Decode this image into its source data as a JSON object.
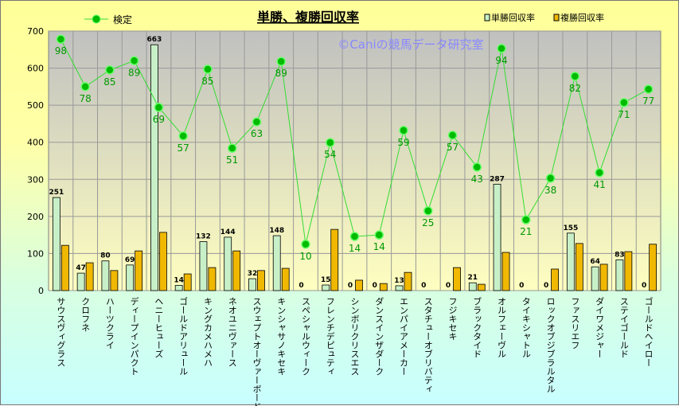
{
  "chart_data": {
    "type": "bar+line",
    "title": "単勝、複勝回収率",
    "watermark": "©Caniの競馬データ研究室",
    "xlabel": "",
    "ylabel": "",
    "ylim": [
      0,
      700
    ],
    "yticks": [
      0,
      100,
      200,
      300,
      400,
      500,
      600,
      700
    ],
    "grid": true,
    "legend_placement": "top",
    "categories": [
      "サウスヴィグラス",
      "クロフネ",
      "ハーツクライ",
      "ディープインパクト",
      "ヘニーヒューズ",
      "ゴールドアリュール",
      "キングカメハメハ",
      "ネオユニヴァース",
      "スウェプトオーヴァーボード",
      "キンシャサノキセキ",
      "スペシャルウィーク",
      "フレンチデピュティ",
      "シンボリクリスエス",
      "ダンスインザダーク",
      "エンパイアメーカー",
      "スタチューオブリバティ",
      "フジキセキ",
      "ブラックタイド",
      "オルフェーヴル",
      "タイキシャトル",
      "ロックオブジブラルタル",
      "ファスリエフ",
      "ダイワメジャー",
      "ステイゴールド",
      "ゴールドヘイロー"
    ],
    "series": [
      {
        "name": "単勝回収率",
        "kind": "bar",
        "color": "#c8f0c8",
        "values": [
          251,
          47,
          80,
          69,
          663,
          14,
          132,
          144,
          32,
          148,
          0,
          15,
          0,
          0,
          13,
          0,
          0,
          21,
          287,
          0,
          0,
          155,
          64,
          83,
          0
        ]
      },
      {
        "name": "複勝回収率",
        "kind": "bar",
        "color": "#f0b800",
        "values": [
          122,
          75,
          54,
          107,
          157,
          45,
          62,
          107,
          54,
          60,
          0,
          165,
          28,
          19,
          49,
          0,
          62,
          17,
          103,
          0,
          58,
          127,
          71,
          105,
          125
        ]
      },
      {
        "name": "検定",
        "kind": "line",
        "color": "#00cc00",
        "values": [
          678,
          550,
          595,
          620,
          494,
          417,
          597,
          384,
          455,
          618,
          125,
          399,
          146,
          150,
          432,
          215,
          419,
          333,
          653,
          191,
          303,
          578,
          318,
          507,
          543
        ],
        "labels": [
          98,
          78,
          85,
          89,
          69,
          57,
          85,
          51,
          63,
          89,
          10,
          54,
          14,
          14,
          59,
          25,
          57,
          43,
          94,
          21,
          38,
          82,
          41,
          71,
          77
        ]
      }
    ]
  }
}
